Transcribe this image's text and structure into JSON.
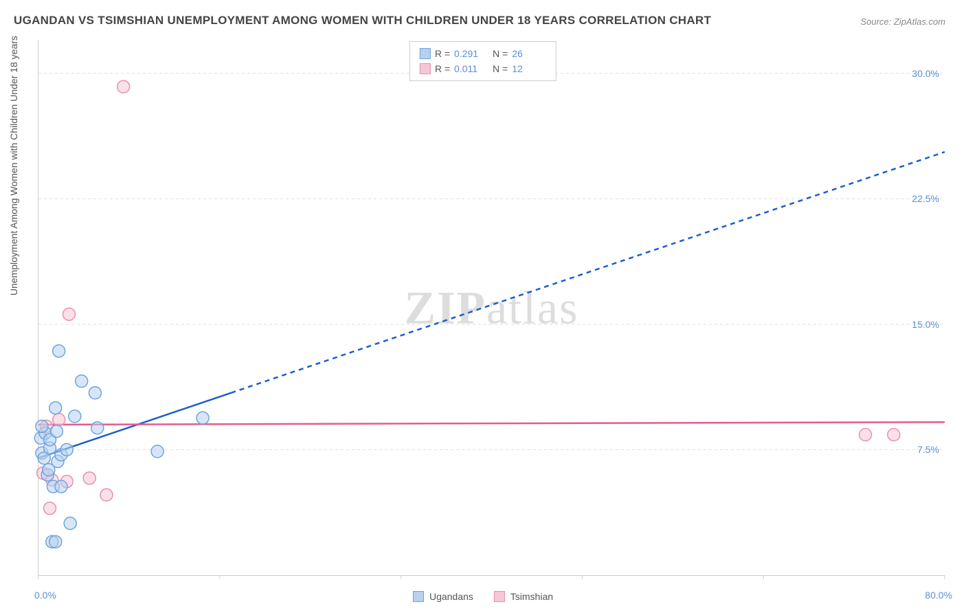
{
  "title": "UGANDAN VS TSIMSHIAN UNEMPLOYMENT AMONG WOMEN WITH CHILDREN UNDER 18 YEARS CORRELATION CHART",
  "source": "Source: ZipAtlas.com",
  "y_axis_label": "Unemployment Among Women with Children Under 18 years",
  "watermark": {
    "bold": "ZIP",
    "rest": "atlas"
  },
  "chart": {
    "type": "scatter",
    "background_color": "#ffffff",
    "grid_color": "#dddddd",
    "axis_color": "#cccccc",
    "text_color": "#555555",
    "value_color": "#5b8dd6",
    "title_fontsize": 17,
    "label_fontsize": 14,
    "xlim": [
      0,
      80
    ],
    "ylim": [
      0,
      32
    ],
    "x_ticks": [
      0,
      16,
      32,
      48,
      64,
      80
    ],
    "y_ticks": [
      7.5,
      15.0,
      22.5,
      30.0
    ],
    "x_min_label": "0.0%",
    "x_max_label": "80.0%",
    "y_tick_labels": [
      "7.5%",
      "15.0%",
      "22.5%",
      "30.0%"
    ],
    "point_radius": 9,
    "point_stroke_width": 1.5,
    "series": [
      {
        "name": "Ugandans",
        "fill": "#b7d1ef",
        "stroke": "#6fa3de",
        "fill_opacity": 0.55,
        "r_value": "0.291",
        "n_value": "26",
        "trend": {
          "color": "#1a5fc9",
          "width": 2.5,
          "solid": {
            "x1": 0,
            "y1": 7.0,
            "x2": 17,
            "y2": 10.9
          },
          "dashed": {
            "x1": 17,
            "y1": 10.9,
            "x2": 80,
            "y2": 25.3
          },
          "dash": "7,6"
        },
        "points": [
          [
            0.2,
            8.2
          ],
          [
            0.3,
            7.3
          ],
          [
            0.5,
            7.0
          ],
          [
            0.6,
            8.5
          ],
          [
            0.8,
            6.0
          ],
          [
            0.9,
            6.3
          ],
          [
            1.0,
            7.6
          ],
          [
            1.0,
            8.1
          ],
          [
            1.2,
            2.0
          ],
          [
            1.5,
            2.0
          ],
          [
            1.3,
            5.3
          ],
          [
            1.5,
            10.0
          ],
          [
            1.6,
            8.6
          ],
          [
            1.7,
            6.8
          ],
          [
            1.8,
            13.4
          ],
          [
            2.0,
            5.3
          ],
          [
            2.0,
            7.2
          ],
          [
            2.5,
            7.5
          ],
          [
            2.8,
            3.1
          ],
          [
            3.2,
            9.5
          ],
          [
            3.8,
            11.6
          ],
          [
            5.0,
            10.9
          ],
          [
            5.2,
            8.8
          ],
          [
            10.5,
            7.4
          ],
          [
            14.5,
            9.4
          ],
          [
            0.3,
            8.9
          ]
        ]
      },
      {
        "name": "Tsimshian",
        "fill": "#f6c6d5",
        "stroke": "#e78fb0",
        "fill_opacity": 0.55,
        "r_value": "0.011",
        "n_value": "12",
        "trend": {
          "color": "#e75a8d",
          "width": 2.5,
          "solid": {
            "x1": 0,
            "y1": 9.0,
            "x2": 80,
            "y2": 9.15
          },
          "dashed": null
        },
        "points": [
          [
            0.4,
            6.1
          ],
          [
            0.7,
            8.9
          ],
          [
            1.0,
            4.0
          ],
          [
            1.2,
            5.7
          ],
          [
            1.8,
            9.3
          ],
          [
            2.5,
            5.6
          ],
          [
            2.7,
            15.6
          ],
          [
            4.5,
            5.8
          ],
          [
            6.0,
            4.8
          ],
          [
            7.5,
            29.2
          ],
          [
            73.0,
            8.4
          ],
          [
            75.5,
            8.4
          ]
        ]
      }
    ]
  },
  "legend_bottom": [
    {
      "label": "Ugandans",
      "fill": "#b7d1ef",
      "stroke": "#6fa3de"
    },
    {
      "label": "Tsimshian",
      "fill": "#f6c6d5",
      "stroke": "#e78fb0"
    }
  ]
}
